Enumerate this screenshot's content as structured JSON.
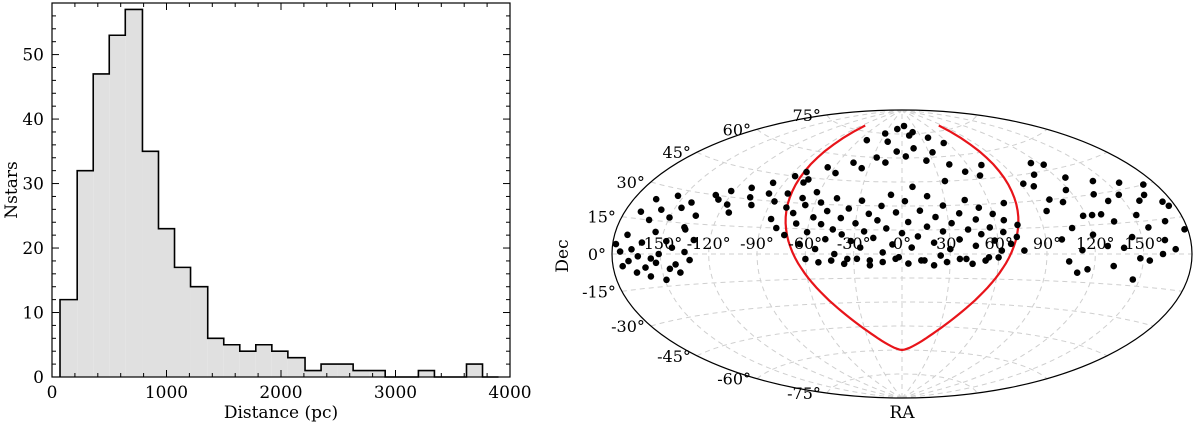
{
  "chart_data": [
    {
      "type": "bar",
      "subtype": "histogram",
      "xlabel": "Distance (pc)",
      "ylabel": "Nstars",
      "xlim": [
        0,
        4000
      ],
      "ylim": [
        0,
        58
      ],
      "x_ticks": [
        "0",
        "1000",
        "2000",
        "3000",
        "4000"
      ],
      "y_ticks": [
        "0",
        "10",
        "20",
        "30",
        "40",
        "50"
      ],
      "fill_color": "#e0e0e0",
      "edge_color": "#000000",
      "bin_edges": [
        70,
        220,
        360,
        500,
        640,
        790,
        930,
        1070,
        1210,
        1360,
        1500,
        1640,
        1780,
        1920,
        2060,
        2210,
        2350,
        2490,
        2630,
        2770,
        2910,
        3060,
        3200,
        3340,
        3480,
        3620,
        3760,
        3900
      ],
      "counts": [
        12,
        32,
        47,
        53,
        57,
        35,
        23,
        17,
        14,
        6,
        5,
        4,
        5,
        4,
        3,
        1,
        2,
        2,
        1,
        1,
        0,
        0,
        1,
        0,
        0,
        2,
        0
      ]
    },
    {
      "type": "scatter",
      "projection": "aitoff",
      "xlabel": "RA",
      "ylabel": "Dec",
      "ra_ticks": [
        "-150°",
        "-120°",
        "-90°",
        "-60°",
        "-30°",
        "0°",
        "30°",
        "60°",
        "90°",
        "120°",
        "150°"
      ],
      "dec_ticks": [
        "-75°",
        "-60°",
        "-45°",
        "-30°",
        "-15°",
        "0°",
        "15°",
        "30°",
        "45°",
        "60°",
        "75°"
      ],
      "grid": true,
      "curve_color": "#e8141a",
      "marker_color": "#000000",
      "points": [
        [
          -178,
          4
        ],
        [
          -175,
          1
        ],
        [
          -174,
          -5
        ],
        [
          -172,
          8
        ],
        [
          -170,
          -3
        ],
        [
          -168,
          2
        ],
        [
          -166,
          -8
        ],
        [
          -164,
          -1
        ],
        [
          -162,
          5
        ],
        [
          -160,
          -6
        ],
        [
          -158,
          -10
        ],
        [
          -156,
          -2
        ],
        [
          -155,
          10
        ],
        [
          -153,
          -4
        ],
        [
          -151,
          0
        ],
        [
          -149,
          -12
        ],
        [
          -147,
          6
        ],
        [
          -145,
          -7
        ],
        [
          -143,
          3
        ],
        [
          -141,
          -5
        ],
        [
          -139,
          -9
        ],
        [
          -137,
          12
        ],
        [
          -135,
          1
        ],
        [
          -132,
          -3
        ],
        [
          -130,
          7
        ],
        [
          -170,
          18
        ],
        [
          -166,
          24
        ],
        [
          -162,
          15
        ],
        [
          -158,
          20
        ],
        [
          -154,
          27
        ],
        [
          -150,
          17
        ],
        [
          -146,
          22
        ],
        [
          -142,
          25
        ],
        [
          -138,
          13
        ],
        [
          -134,
          19
        ],
        [
          -130,
          30
        ],
        [
          -126,
          28
        ],
        [
          -122,
          33
        ],
        [
          -118,
          26
        ],
        [
          -114,
          22
        ],
        [
          -110,
          36
        ],
        [
          -106,
          31
        ],
        [
          -102,
          27
        ],
        [
          -98,
          40
        ],
        [
          -95,
          34
        ],
        [
          -88,
          30
        ],
        [
          -85,
          20
        ],
        [
          -82,
          35
        ],
        [
          -80,
          15
        ],
        [
          -78,
          27
        ],
        [
          -76,
          42
        ],
        [
          -74,
          11
        ],
        [
          -72,
          24
        ],
        [
          -70,
          33
        ],
        [
          -68,
          18
        ],
        [
          -66,
          29
        ],
        [
          -64,
          6
        ],
        [
          -62,
          37
        ],
        [
          -60,
          13
        ],
        [
          -58,
          22
        ],
        [
          -56,
          31
        ],
        [
          -54,
          3
        ],
        [
          -52,
          18
        ],
        [
          -50,
          26
        ],
        [
          -48,
          9
        ],
        [
          -46,
          34
        ],
        [
          -44,
          15
        ],
        [
          -42,
          0
        ],
        [
          -40,
          22
        ],
        [
          -38,
          12
        ],
        [
          -36,
          28
        ],
        [
          -34,
          -3
        ],
        [
          -32,
          8
        ],
        [
          -30,
          19
        ],
        [
          -28,
          33
        ],
        [
          -26,
          4
        ],
        [
          -24,
          14
        ],
        [
          -22,
          25
        ],
        [
          -20,
          -4
        ],
        [
          -18,
          10
        ],
        [
          -16,
          21
        ],
        [
          -14,
          30
        ],
        [
          -12,
          1
        ],
        [
          -10,
          16
        ],
        [
          -8,
          37
        ],
        [
          -6,
          6
        ],
        [
          -4,
          26
        ],
        [
          -2,
          -2
        ],
        [
          0,
          13
        ],
        [
          2,
          33
        ],
        [
          4,
          20
        ],
        [
          6,
          4
        ],
        [
          8,
          42
        ],
        [
          10,
          11
        ],
        [
          12,
          27
        ],
        [
          14,
          -4
        ],
        [
          16,
          17
        ],
        [
          18,
          36
        ],
        [
          20,
          7
        ],
        [
          22,
          23
        ],
        [
          24,
          -1
        ],
        [
          26,
          14
        ],
        [
          28,
          30
        ],
        [
          30,
          3
        ],
        [
          32,
          19
        ],
        [
          34,
          45
        ],
        [
          36,
          9
        ],
        [
          38,
          25
        ],
        [
          40,
          -3
        ],
        [
          42,
          15
        ],
        [
          44,
          33
        ],
        [
          46,
          5
        ],
        [
          48,
          21
        ],
        [
          50,
          12
        ],
        [
          52,
          28
        ],
        [
          54,
          -2
        ],
        [
          56,
          16
        ],
        [
          58,
          8
        ],
        [
          60,
          24
        ],
        [
          62,
          2
        ],
        [
          64,
          13
        ],
        [
          66,
          20
        ],
        [
          68,
          6
        ],
        [
          70,
          30
        ],
        [
          72,
          10
        ],
        [
          74,
          17
        ],
        [
          76,
          2
        ],
        [
          -86,
          45
        ],
        [
          -80,
          48
        ],
        [
          -74,
          44
        ],
        [
          -66,
          52
        ],
        [
          -56,
          49
        ],
        [
          -46,
          56
        ],
        [
          -36,
          53
        ],
        [
          -26,
          60
        ],
        [
          -16,
          57
        ],
        [
          -6,
          64
        ],
        [
          4,
          61
        ],
        [
          14,
          66
        ],
        [
          24,
          58
        ],
        [
          34,
          63
        ],
        [
          44,
          55
        ],
        [
          54,
          50
        ],
        [
          64,
          47
        ],
        [
          72,
          53
        ],
        [
          -60,
          -3
        ],
        [
          -52,
          -5
        ],
        [
          -44,
          -4
        ],
        [
          -36,
          -6
        ],
        [
          -28,
          -3
        ],
        [
          -20,
          -7
        ],
        [
          -12,
          -5
        ],
        [
          -4,
          -3
        ],
        [
          4,
          -6
        ],
        [
          12,
          -4
        ],
        [
          20,
          -7
        ],
        [
          28,
          -5
        ],
        [
          36,
          -3
        ],
        [
          44,
          -6
        ],
        [
          52,
          -4
        ],
        [
          60,
          -2
        ],
        [
          -30,
          75
        ],
        [
          -10,
          78
        ],
        [
          5,
          80
        ],
        [
          20,
          76
        ],
        [
          40,
          72
        ],
        [
          -50,
          70
        ],
        [
          55,
          68
        ],
        [
          12,
          74
        ],
        [
          -20,
          70
        ],
        [
          100,
          8
        ],
        [
          104,
          -4
        ],
        [
          108,
          14
        ],
        [
          112,
          2
        ],
        [
          116,
          -8
        ],
        [
          120,
          10
        ],
        [
          124,
          20
        ],
        [
          128,
          4
        ],
        [
          132,
          -6
        ],
        [
          136,
          16
        ],
        [
          140,
          26
        ],
        [
          144,
          8
        ],
        [
          148,
          -2
        ],
        [
          152,
          18
        ],
        [
          156,
          12
        ],
        [
          160,
          24
        ],
        [
          164,
          6
        ],
        [
          168,
          14
        ],
        [
          172,
          30
        ],
        [
          176,
          20
        ],
        [
          178,
          10
        ],
        [
          110,
          28
        ],
        [
          118,
          34
        ],
        [
          126,
          40
        ],
        [
          134,
          30
        ],
        [
          142,
          36
        ],
        [
          150,
          28
        ],
        [
          158,
          33
        ],
        [
          166,
          26
        ],
        [
          174,
          22
        ],
        [
          98,
          38
        ],
        [
          106,
          44
        ],
        [
          114,
          50
        ],
        [
          122,
          48
        ],
        [
          130,
          20
        ],
        [
          138,
          3
        ],
        [
          146,
          -12
        ],
        [
          154,
          -3
        ],
        [
          162,
          0
        ],
        [
          170,
          2
        ],
        [
          92,
          40
        ],
        [
          96,
          24
        ],
        [
          102,
          30
        ],
        [
          110,
          -10
        ],
        [
          118,
          20
        ]
      ]
    }
  ]
}
